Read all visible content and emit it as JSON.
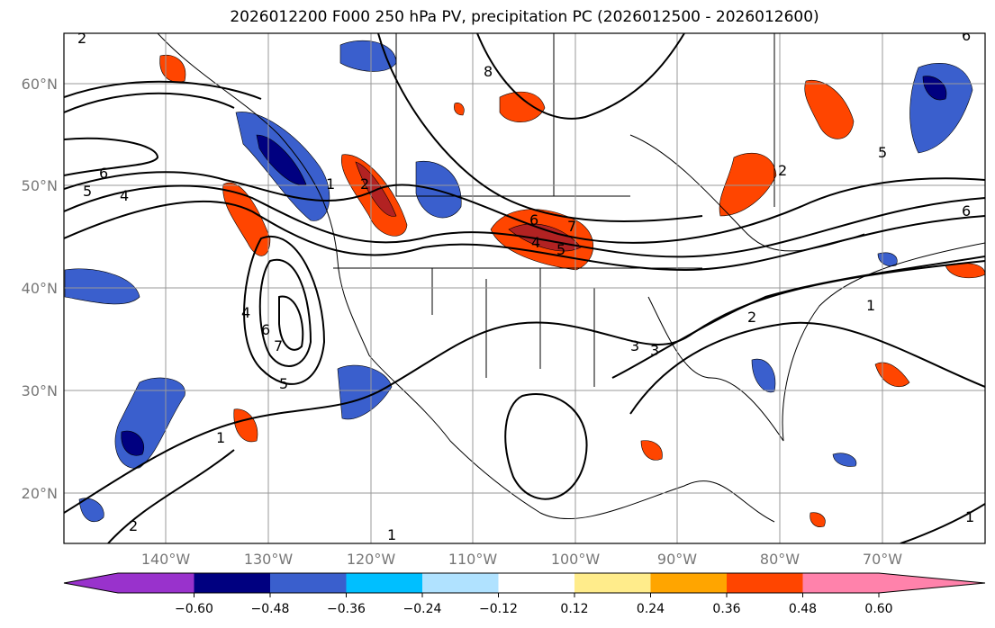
{
  "title": "2026012200 F000 250 hPa PV, precipitation PC (2026012500 - 2026012600)",
  "axes": {
    "lon_labels": [
      "140°W",
      "130°W",
      "120°W",
      "110°W",
      "100°W",
      "90°W",
      "80°W",
      "70°W"
    ],
    "lat_labels": [
      "60°N",
      "50°N",
      "40°N",
      "30°N",
      "20°N"
    ]
  },
  "colorbar": {
    "ticks": [
      "−0.60",
      "−0.48",
      "−0.36",
      "−0.24",
      "−0.12",
      "0.12",
      "0.24",
      "0.36",
      "0.48",
      "0.60"
    ],
    "colors": [
      "#9932CC",
      "#000080",
      "#3A5FCD",
      "#00BFFF",
      "#B0E2FF",
      "#FFFFFF",
      "#FFEC8B",
      "#FFA500",
      "#FF4500",
      "#B22222",
      "#FF82AB"
    ]
  },
  "contours": {
    "labels": [
      "2",
      "6",
      "5",
      "4",
      "8",
      "2",
      "1",
      "6",
      "7",
      "5",
      "4",
      "3",
      "2",
      "1",
      "6",
      "4",
      "6",
      "7",
      "5",
      "1",
      "2",
      "1",
      "3",
      "2",
      "1",
      "5",
      "6"
    ]
  }
}
